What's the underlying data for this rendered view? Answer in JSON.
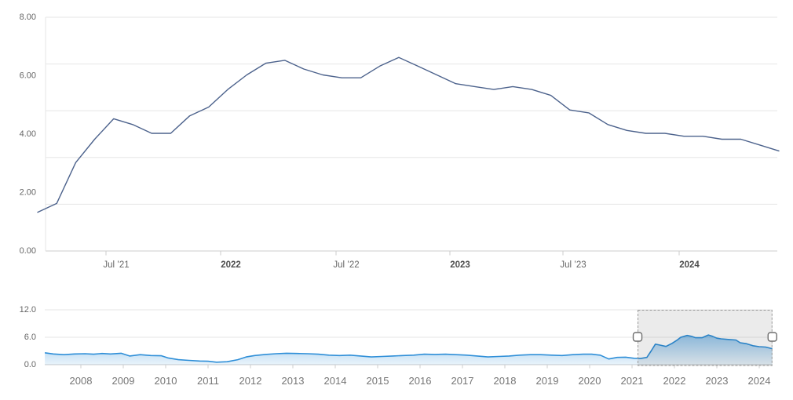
{
  "accent_colors": {
    "main_line": "#4c628c",
    "nav_line": "#2f8fd8",
    "nav_fill_top": "rgba(47,143,216,0.50)",
    "nav_fill_bottom": "rgba(47,143,216,0.10)",
    "gridline": "#e6e6e6",
    "axis_line": "#cccccc",
    "mask_fill": "rgba(0,0,0,0.08)",
    "handle_border": "#6e6e6e",
    "handle_fill": "#ffffff",
    "dashed_border": "#9a9a9a"
  },
  "chart_data": [
    {
      "id": "main",
      "type": "line",
      "title": "",
      "xlabel": "",
      "ylabel": "",
      "ylim": [
        0,
        8
      ],
      "grid": true,
      "legend": "none",
      "yticks": [
        {
          "label": "8.00",
          "value": 8
        },
        {
          "label": "6.00",
          "value": 6
        },
        {
          "label": "4.00",
          "value": 4
        },
        {
          "label": "2.00",
          "value": 2
        },
        {
          "label": "0.00",
          "value": 0
        }
      ],
      "xticks": [
        {
          "label": "Jul ’21",
          "bold": false
        },
        {
          "label": "2022",
          "bold": true
        },
        {
          "label": "Jul ’22",
          "bold": false
        },
        {
          "label": "2023",
          "bold": true
        },
        {
          "label": "Jul ’23",
          "bold": false
        },
        {
          "label": "2024",
          "bold": true
        }
      ],
      "months": [
        "Mar 2021",
        "Apr 2021",
        "May 2021",
        "Jun 2021",
        "Jul 2021",
        "Aug 2021",
        "Sep 2021",
        "Oct 2021",
        "Nov 2021",
        "Dec 2021",
        "Jan 2022",
        "Feb 2022",
        "Mar 2022",
        "Apr 2022",
        "May 2022",
        "Jun 2022",
        "Jul 2022",
        "Aug 2022",
        "Sep 2022",
        "Oct 2022",
        "Nov 2022",
        "Dec 2022",
        "Jan 2023",
        "Feb 2023",
        "Mar 2023",
        "Apr 2023",
        "May 2023",
        "Jun 2023",
        "Jul 2023",
        "Aug 2023",
        "Sep 2023",
        "Oct 2023",
        "Nov 2023",
        "Dec 2023",
        "Jan 2024",
        "Feb 2024",
        "Mar 2024",
        "Apr 2024",
        "May 2024",
        "Jun 2024"
      ],
      "values": [
        1.3,
        1.6,
        3.0,
        3.8,
        4.5,
        4.3,
        4.0,
        4.0,
        4.6,
        4.9,
        5.5,
        6.0,
        6.4,
        6.5,
        6.2,
        6.0,
        5.9,
        5.9,
        6.3,
        6.6,
        6.3,
        6.0,
        5.7,
        5.6,
        5.5,
        5.6,
        5.5,
        5.3,
        4.8,
        4.7,
        4.3,
        4.1,
        4.0,
        4.0,
        3.9,
        3.9,
        3.8,
        3.8,
        3.6,
        3.4
      ]
    },
    {
      "id": "navigator",
      "type": "area",
      "ylim": [
        0,
        12
      ],
      "yticks": [
        {
          "label": "12.0",
          "value": 12
        },
        {
          "label": "6.0",
          "value": 6
        },
        {
          "label": "0.0",
          "value": 0
        }
      ],
      "xticks": [
        "2008",
        "2009",
        "2010",
        "2011",
        "2012",
        "2013",
        "2014",
        "2015",
        "2016",
        "2017",
        "2018",
        "2019",
        "2020",
        "2021",
        "2022",
        "2023",
        "2024"
      ],
      "selected_range": [
        2021.13,
        2024.31
      ],
      "points": [
        [
          2007.15,
          2.6
        ],
        [
          2007.35,
          2.35
        ],
        [
          2007.6,
          2.2
        ],
        [
          2007.85,
          2.35
        ],
        [
          2008.1,
          2.4
        ],
        [
          2008.3,
          2.3
        ],
        [
          2008.5,
          2.45
        ],
        [
          2008.7,
          2.35
        ],
        [
          2008.95,
          2.5
        ],
        [
          2009.15,
          1.9
        ],
        [
          2009.4,
          2.2
        ],
        [
          2009.65,
          2.0
        ],
        [
          2009.9,
          1.95
        ],
        [
          2010.05,
          1.5
        ],
        [
          2010.3,
          1.1
        ],
        [
          2010.55,
          0.95
        ],
        [
          2010.8,
          0.8
        ],
        [
          2011.0,
          0.75
        ],
        [
          2011.2,
          0.55
        ],
        [
          2011.45,
          0.65
        ],
        [
          2011.7,
          1.1
        ],
        [
          2011.9,
          1.7
        ],
        [
          2012.1,
          2.0
        ],
        [
          2012.35,
          2.25
        ],
        [
          2012.6,
          2.4
        ],
        [
          2012.85,
          2.5
        ],
        [
          2013.1,
          2.45
        ],
        [
          2013.35,
          2.4
        ],
        [
          2013.6,
          2.3
        ],
        [
          2013.85,
          2.1
        ],
        [
          2014.1,
          2.0
        ],
        [
          2014.35,
          2.1
        ],
        [
          2014.6,
          1.9
        ],
        [
          2014.85,
          1.7
        ],
        [
          2015.1,
          1.8
        ],
        [
          2015.35,
          1.9
        ],
        [
          2015.6,
          2.0
        ],
        [
          2015.85,
          2.1
        ],
        [
          2016.1,
          2.3
        ],
        [
          2016.35,
          2.25
        ],
        [
          2016.6,
          2.3
        ],
        [
          2016.85,
          2.2
        ],
        [
          2017.1,
          2.1
        ],
        [
          2017.35,
          1.9
        ],
        [
          2017.6,
          1.7
        ],
        [
          2017.85,
          1.8
        ],
        [
          2018.1,
          1.9
        ],
        [
          2018.35,
          2.1
        ],
        [
          2018.6,
          2.2
        ],
        [
          2018.85,
          2.2
        ],
        [
          2019.1,
          2.1
        ],
        [
          2019.35,
          2.0
        ],
        [
          2019.6,
          2.2
        ],
        [
          2019.85,
          2.3
        ],
        [
          2020.05,
          2.3
        ],
        [
          2020.25,
          2.1
        ],
        [
          2020.45,
          1.25
        ],
        [
          2020.65,
          1.6
        ],
        [
          2020.85,
          1.65
        ],
        [
          2021.05,
          1.4
        ],
        [
          2021.2,
          1.35
        ],
        [
          2021.35,
          1.6
        ],
        [
          2021.45,
          3.0
        ],
        [
          2021.55,
          4.5
        ],
        [
          2021.65,
          4.3
        ],
        [
          2021.8,
          4.0
        ],
        [
          2021.95,
          4.7
        ],
        [
          2022.05,
          5.3
        ],
        [
          2022.15,
          6.0
        ],
        [
          2022.3,
          6.4
        ],
        [
          2022.4,
          6.2
        ],
        [
          2022.5,
          5.9
        ],
        [
          2022.65,
          5.9
        ],
        [
          2022.8,
          6.5
        ],
        [
          2022.9,
          6.2
        ],
        [
          2023.0,
          5.8
        ],
        [
          2023.1,
          5.65
        ],
        [
          2023.3,
          5.5
        ],
        [
          2023.45,
          5.4
        ],
        [
          2023.55,
          4.8
        ],
        [
          2023.7,
          4.6
        ],
        [
          2023.85,
          4.15
        ],
        [
          2024.0,
          3.95
        ],
        [
          2024.15,
          3.85
        ],
        [
          2024.31,
          3.5
        ]
      ]
    }
  ]
}
